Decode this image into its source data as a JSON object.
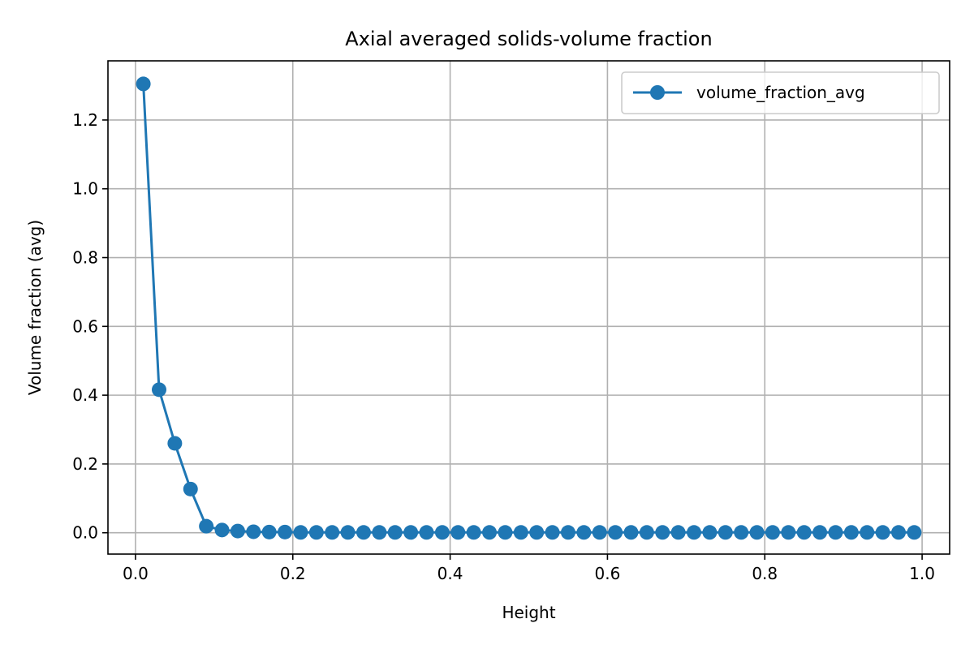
{
  "chart_data": {
    "type": "line",
    "title": "Axial averaged solids-volume fraction",
    "xlabel": "Height",
    "ylabel": "Volume fraction (avg)",
    "xlim": [
      -0.035,
      1.035
    ],
    "ylim": [
      -0.062,
      1.372
    ],
    "x_ticks": [
      0.0,
      0.2,
      0.4,
      0.6,
      0.8,
      1.0
    ],
    "x_tick_labels": [
      "0.0",
      "0.2",
      "0.4",
      "0.6",
      "0.8",
      "1.0"
    ],
    "y_ticks": [
      0.0,
      0.2,
      0.4,
      0.6,
      0.8,
      1.0,
      1.2
    ],
    "y_tick_labels": [
      "0.0",
      "0.2",
      "0.4",
      "0.6",
      "0.8",
      "1.0",
      "1.2"
    ],
    "grid": true,
    "legend_position": "top-right",
    "series": [
      {
        "name": "volume_fraction_avg",
        "color": "#1f77b4",
        "marker": "circle",
        "x": [
          0.01,
          0.03,
          0.05,
          0.07,
          0.09,
          0.11,
          0.13,
          0.15,
          0.17,
          0.19,
          0.21,
          0.23,
          0.25,
          0.27,
          0.29,
          0.31,
          0.33,
          0.35,
          0.37,
          0.39,
          0.41,
          0.43,
          0.45,
          0.47,
          0.49,
          0.51,
          0.53,
          0.55,
          0.57,
          0.59,
          0.61,
          0.63,
          0.65,
          0.67,
          0.69,
          0.71,
          0.73,
          0.75,
          0.77,
          0.79,
          0.81,
          0.83,
          0.85,
          0.87,
          0.89,
          0.91,
          0.93,
          0.95,
          0.97,
          0.99
        ],
        "values": [
          1.305,
          0.416,
          0.26,
          0.127,
          0.019,
          0.008,
          0.005,
          0.003,
          0.002,
          0.002,
          0.001,
          0.001,
          0.001,
          0.001,
          0.001,
          0.001,
          0.001,
          0.001,
          0.001,
          0.001,
          0.001,
          0.001,
          0.001,
          0.001,
          0.001,
          0.001,
          0.001,
          0.001,
          0.001,
          0.001,
          0.001,
          0.001,
          0.001,
          0.001,
          0.001,
          0.001,
          0.001,
          0.001,
          0.001,
          0.001,
          0.001,
          0.001,
          0.001,
          0.001,
          0.001,
          0.001,
          0.001,
          0.001,
          0.001,
          0.001
        ]
      }
    ]
  }
}
